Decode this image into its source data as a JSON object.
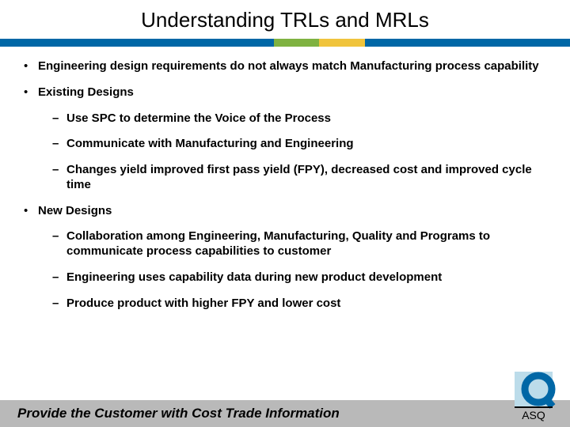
{
  "title": "Understanding TRLs and MRLs",
  "divider": {
    "segments": [
      {
        "color": "#0067a6",
        "width": "48%"
      },
      {
        "color": "#7fb241",
        "width": "8%"
      },
      {
        "color": "#f0c43c",
        "width": "8%"
      },
      {
        "color": "#0067a6",
        "width": "36%"
      }
    ]
  },
  "bullets": [
    {
      "level": 1,
      "text": "Engineering design requirements do not always match Manufacturing process capability"
    },
    {
      "level": 1,
      "text": "Existing Designs"
    },
    {
      "level": 2,
      "text": "Use SPC to determine the Voice of the Process"
    },
    {
      "level": 2,
      "text": "Communicate with Manufacturing and Engineering"
    },
    {
      "level": 2,
      "text": "Changes yield improved first pass yield (FPY), decreased cost and improved cycle time"
    },
    {
      "level": 1,
      "text": "New Designs"
    },
    {
      "level": 2,
      "text": "Collaboration among Engineering, Manufacturing, Quality and Programs to communicate process capabilities to customer"
    },
    {
      "level": 2,
      "text": "Engineering uses capability data during new product development"
    },
    {
      "level": 2,
      "text": "Produce product with higher FPY and lower cost"
    }
  ],
  "footer": "Provide the Customer with Cost Trade Information",
  "logo": {
    "text": "ASQ",
    "q_color": "#0067a6",
    "bg_light": "#bcdcea"
  },
  "markers": {
    "l1": "•",
    "l2": "–"
  }
}
